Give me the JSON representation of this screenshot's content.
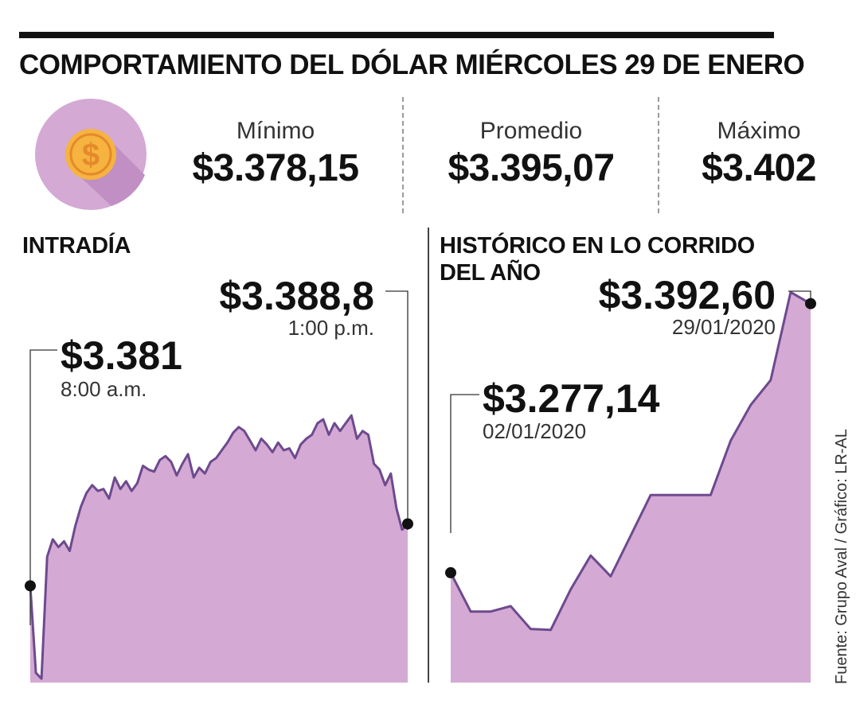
{
  "title": "COMPORTAMIENTO DEL DÓLAR MIÉRCOLES 29 DE ENERO",
  "colors": {
    "fill": "#d4a9d4",
    "line": "#6d4a8e",
    "coin": "#f6b33f",
    "circle": "#d4a9d4"
  },
  "icons": {
    "coin": "dollar-coin-icon"
  },
  "stats": [
    {
      "label": "Mínimo",
      "value": "$3.378,15"
    },
    {
      "label": "Promedio",
      "value": "$3.395,07"
    },
    {
      "label": "Máximo",
      "value": "$3.402"
    }
  ],
  "source": "Fuente: Grupo Aval / Gráfico: LR-AL",
  "chart_data": [
    {
      "type": "area",
      "title": "INTRADÍA",
      "ylim": [
        3376,
        3394
      ],
      "annotations": [
        {
          "value": "$3.381",
          "time": "8:00 a.m."
        },
        {
          "value": "$3.388,8",
          "time": "1:00 p.m."
        }
      ],
      "values": [
        3381.0,
        3376.5,
        3376.2,
        3382.5,
        3383.4,
        3383.0,
        3383.3,
        3382.8,
        3384.1,
        3385.1,
        3385.8,
        3386.2,
        3385.9,
        3386.0,
        3385.5,
        3386.6,
        3386.0,
        3386.4,
        3385.9,
        3386.3,
        3387.2,
        3387.0,
        3386.9,
        3387.5,
        3387.7,
        3387.4,
        3386.7,
        3387.3,
        3387.8,
        3386.6,
        3387.1,
        3386.8,
        3387.4,
        3387.6,
        3388.0,
        3388.4,
        3388.9,
        3389.2,
        3389.0,
        3388.5,
        3388.0,
        3388.6,
        3388.3,
        3387.9,
        3388.4,
        3388.0,
        3388.1,
        3387.6,
        3388.3,
        3388.6,
        3388.8,
        3389.4,
        3389.6,
        3388.8,
        3389.4,
        3389.0,
        3389.4,
        3389.8,
        3388.6,
        3389.0,
        3388.8,
        3387.3,
        3387.0,
        3386.2,
        3386.8,
        3385.0,
        3383.9,
        3384.2
      ]
    },
    {
      "type": "area",
      "title": "HISTÓRICO EN LO CORRIDO DEL AÑO",
      "ylim": [
        3230,
        3400
      ],
      "annotations": [
        {
          "value": "$3.277,14",
          "date": "02/01/2020"
        },
        {
          "value": "$3.392,60",
          "date": "29/01/2020"
        }
      ],
      "values": [
        3277.14,
        3260.5,
        3260.5,
        3262.8,
        3253.0,
        3252.6,
        3270.0,
        3284.5,
        3275.6,
        3293.0,
        3310.5,
        3310.5,
        3310.5,
        3310.5,
        3333.8,
        3349.1,
        3359.8,
        3397.5,
        3392.6
      ]
    }
  ]
}
